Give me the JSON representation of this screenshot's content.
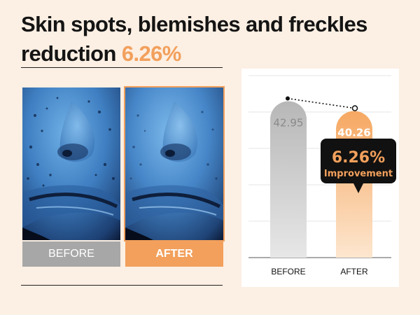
{
  "header": {
    "title_line1": "Skin spots, blemishes and freckles",
    "title_line2": "reduction",
    "highlight": "6.26%"
  },
  "photos": {
    "before_label": "BEFORE",
    "after_label": "AFTER"
  },
  "colors": {
    "accent": "#f2a05c",
    "before_gray": "#a7a7a7",
    "background": "#fcefe3",
    "callout": "#111111"
  },
  "chart_data": {
    "type": "bar",
    "categories": [
      "BEFORE",
      "AFTER"
    ],
    "values": [
      42.95,
      40.26
    ],
    "value_labels": [
      "42.95",
      "40.26"
    ],
    "ylim": [
      0,
      50
    ],
    "grid": true,
    "callout": {
      "value": "6.26%",
      "label": "Improvement"
    }
  }
}
